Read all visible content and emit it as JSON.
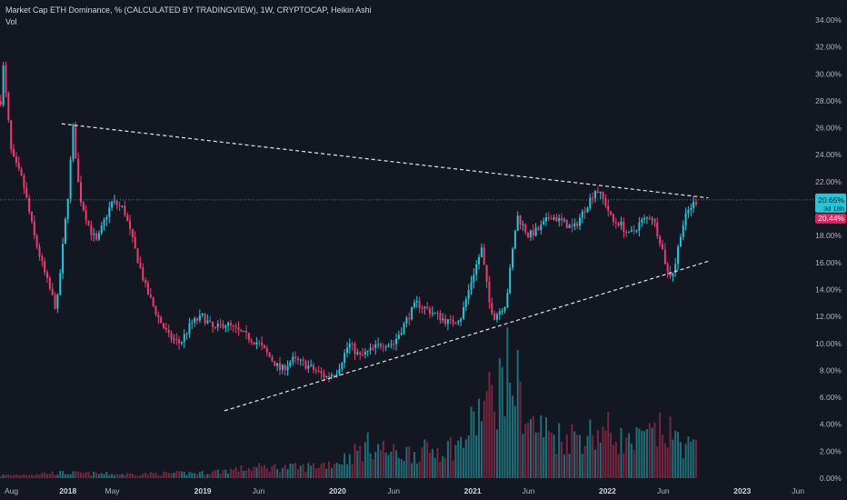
{
  "header": {
    "title": "Market Cap ETH Dominance, % (CALCULATED BY TRADINGVIEW), 1W, CRYPTOCAP, Heikin Ashi",
    "subtitle": "Vol"
  },
  "colors": {
    "background": "#131722",
    "up": "#26c6da",
    "down": "#ef3b6d",
    "vol_up": "#1f6f78",
    "vol_down": "#7a2540",
    "trendline": "#e6e6e6",
    "current_line": "#26c6da"
  },
  "labels": {
    "current_price": "20.65%",
    "countdown": "3d 18h",
    "prev_price": "20.44%"
  },
  "chart_data": {
    "type": "candlestick",
    "style": "Heikin Ashi",
    "interval": "1W",
    "y_axis": {
      "ylim": [
        0,
        34
      ],
      "ticks": [
        "0.00%",
        "2.00%",
        "4.00%",
        "6.00%",
        "8.00%",
        "10.00%",
        "12.00%",
        "14.00%",
        "16.00%",
        "18.00%",
        "20.00%",
        "22.00%",
        "24.00%",
        "26.00%",
        "28.00%",
        "30.00%",
        "32.00%",
        "34.00%"
      ]
    },
    "x_axis": {
      "ticks": [
        {
          "label": "Aug",
          "date": "2017-08-01"
        },
        {
          "label": "2018",
          "date": "2018-01-01",
          "bold": true
        },
        {
          "label": "May",
          "date": "2018-05-01"
        },
        {
          "label": "2019",
          "date": "2019-01-01",
          "bold": true
        },
        {
          "label": "Jun",
          "date": "2019-06-01"
        },
        {
          "label": "2020",
          "date": "2020-01-01",
          "bold": true
        },
        {
          "label": "Jun",
          "date": "2020-06-01"
        },
        {
          "label": "2021",
          "date": "2021-01-01",
          "bold": true
        },
        {
          "label": "Jun",
          "date": "2021-06-01"
        },
        {
          "label": "2022",
          "date": "2022-01-01",
          "bold": true
        },
        {
          "label": "Jun",
          "date": "2022-06-01"
        },
        {
          "label": "2023",
          "date": "2023-01-01",
          "bold": true
        },
        {
          "label": "Jun",
          "date": "2023-06-01"
        }
      ],
      "range": [
        "2017-07-01",
        "2023-07-15"
      ]
    },
    "price_path": [
      [
        "2017-07-03",
        28
      ],
      [
        "2017-07-10",
        30.5
      ],
      [
        "2017-08-01",
        24
      ],
      [
        "2017-09-01",
        22
      ],
      [
        "2017-10-01",
        18
      ],
      [
        "2017-11-01",
        15
      ],
      [
        "2017-12-01",
        12.5
      ],
      [
        "2018-01-01",
        21
      ],
      [
        "2018-01-15",
        26
      ],
      [
        "2018-02-01",
        21
      ],
      [
        "2018-03-01",
        18.5
      ],
      [
        "2018-03-20",
        17.5
      ],
      [
        "2018-04-15",
        19.5
      ],
      [
        "2018-05-01",
        20.5
      ],
      [
        "2018-06-01",
        20
      ],
      [
        "2018-07-01",
        17
      ],
      [
        "2018-08-01",
        14
      ],
      [
        "2018-09-01",
        12
      ],
      [
        "2018-10-01",
        10.5
      ],
      [
        "2018-11-01",
        10
      ],
      [
        "2018-12-01",
        11.5
      ],
      [
        "2019-01-01",
        12
      ],
      [
        "2019-02-01",
        11
      ],
      [
        "2019-03-01",
        11.5
      ],
      [
        "2019-04-01",
        11
      ],
      [
        "2019-05-01",
        10.5
      ],
      [
        "2019-06-01",
        10
      ],
      [
        "2019-07-01",
        9
      ],
      [
        "2019-08-01",
        8
      ],
      [
        "2019-09-01",
        8.8
      ],
      [
        "2019-10-01",
        8.5
      ],
      [
        "2019-11-01",
        8
      ],
      [
        "2019-12-01",
        7.5
      ],
      [
        "2020-01-01",
        8
      ],
      [
        "2020-02-01",
        10
      ],
      [
        "2020-03-01",
        9
      ],
      [
        "2020-04-01",
        9.5
      ],
      [
        "2020-05-01",
        10
      ],
      [
        "2020-06-01",
        10
      ],
      [
        "2020-07-01",
        11.5
      ],
      [
        "2020-08-01",
        13
      ],
      [
        "2020-09-01",
        12.5
      ],
      [
        "2020-10-01",
        12
      ],
      [
        "2020-11-01",
        11.5
      ],
      [
        "2020-12-01",
        12
      ],
      [
        "2021-01-01",
        15
      ],
      [
        "2021-01-25",
        17
      ],
      [
        "2021-02-15",
        13
      ],
      [
        "2021-03-01",
        12
      ],
      [
        "2021-04-01",
        13
      ],
      [
        "2021-05-01",
        19.5
      ],
      [
        "2021-06-01",
        18
      ],
      [
        "2021-07-01",
        18.5
      ],
      [
        "2021-08-01",
        19.5
      ],
      [
        "2021-09-01",
        19
      ],
      [
        "2021-10-01",
        18.5
      ],
      [
        "2021-11-01",
        20
      ],
      [
        "2021-12-01",
        21.5
      ],
      [
        "2021-12-25",
        20.5
      ],
      [
        "2022-01-15",
        19
      ],
      [
        "2022-02-01",
        19
      ],
      [
        "2022-03-01",
        18
      ],
      [
        "2022-04-01",
        19
      ],
      [
        "2022-05-01",
        19.5
      ],
      [
        "2022-05-25",
        17.5
      ],
      [
        "2022-06-15",
        15
      ],
      [
        "2022-07-01",
        15.5
      ],
      [
        "2022-07-20",
        18.5
      ],
      [
        "2022-08-10",
        20
      ],
      [
        "2022-09-01",
        20.65
      ]
    ],
    "volume_path": [
      [
        "2017-07-03",
        0.2
      ],
      [
        "2017-12-01",
        0.4
      ],
      [
        "2018-06-01",
        0.3
      ],
      [
        "2019-01-01",
        0.4
      ],
      [
        "2019-06-01",
        0.8
      ],
      [
        "2019-10-01",
        0.8
      ],
      [
        "2020-01-01",
        1.2
      ],
      [
        "2020-04-01",
        2.5
      ],
      [
        "2020-06-01",
        1.8
      ],
      [
        "2020-09-01",
        2.0
      ],
      [
        "2020-12-01",
        2.5
      ],
      [
        "2021-01-01",
        4.0
      ],
      [
        "2021-02-01",
        5.5
      ],
      [
        "2021-03-01",
        6.0
      ],
      [
        "2021-04-01",
        8.0
      ],
      [
        "2021-05-01",
        7.0
      ],
      [
        "2021-06-01",
        4.0
      ],
      [
        "2021-09-01",
        3.0
      ],
      [
        "2022-01-01",
        3.5
      ],
      [
        "2022-03-01",
        2.5
      ],
      [
        "2022-06-01",
        3.5
      ],
      [
        "2022-09-01",
        2.0
      ]
    ],
    "trendlines": [
      {
        "name": "upper",
        "points": [
          [
            "2017-12-15",
            26.3
          ],
          [
            "2022-10-01",
            20.8
          ]
        ]
      },
      {
        "name": "lower",
        "points": [
          [
            "2019-03-01",
            5.0
          ],
          [
            "2022-10-01",
            16.1
          ]
        ]
      }
    ],
    "current_value": 20.65
  }
}
